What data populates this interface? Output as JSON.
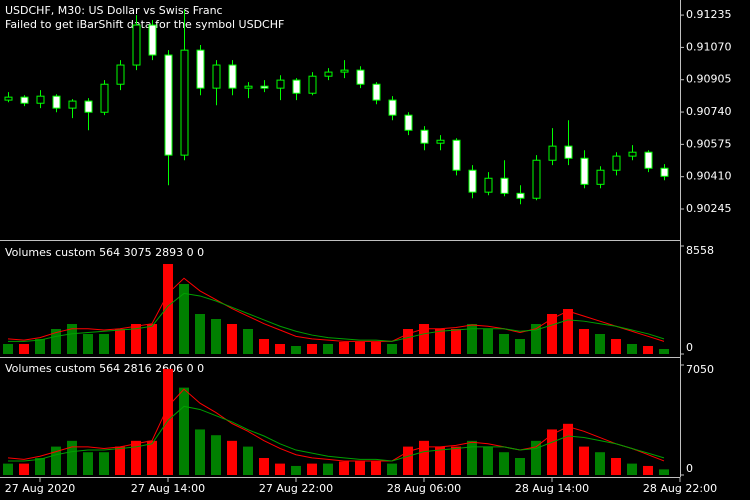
{
  "chart_data": [
    {
      "type": "candlestick",
      "title": "USDCHF, M30:  US Dollar vs Swiss Franc",
      "annotation": "Failed to get iBarShift data for the symbol USDCHF",
      "open": [
        0.90801,
        0.90816,
        0.90785,
        0.90821,
        0.9076,
        0.90796,
        0.90739,
        0.90882,
        0.9098,
        0.91184,
        0.91031,
        0.9052,
        0.91056,
        0.90862,
        0.9098,
        0.90862,
        0.90872,
        0.90862,
        0.90903,
        0.90836,
        0.90923,
        0.90944,
        0.90954,
        0.90882,
        0.90801,
        0.90724,
        0.90647,
        0.90581,
        0.90596,
        0.90443,
        0.90331,
        0.90402,
        0.90325,
        0.903,
        0.90494,
        0.90566,
        0.90504,
        0.90371,
        0.90443,
        0.90515,
        0.90535,
        0.90453
      ],
      "high": [
        0.90842,
        0.90826,
        0.90852,
        0.90831,
        0.90806,
        0.90811,
        0.90903,
        0.91005,
        0.91235,
        0.91209,
        0.91056,
        0.91261,
        0.91082,
        0.91005,
        0.91005,
        0.90893,
        0.90903,
        0.90928,
        0.90913,
        0.90944,
        0.90964,
        0.91005,
        0.90974,
        0.90893,
        0.90821,
        0.90739,
        0.90668,
        0.90622,
        0.90606,
        0.90469,
        0.90433,
        0.90494,
        0.90366,
        0.9052,
        0.90658,
        0.90698,
        0.90545,
        0.90463,
        0.90535,
        0.90571,
        0.90545,
        0.90474
      ],
      "low": [
        0.9079,
        0.9077,
        0.9076,
        0.90739,
        0.90709,
        0.90647,
        0.90724,
        0.90852,
        0.90954,
        0.91005,
        0.90366,
        0.90494,
        0.90826,
        0.90775,
        0.90826,
        0.90811,
        0.90842,
        0.90801,
        0.90801,
        0.90826,
        0.90903,
        0.90913,
        0.90862,
        0.9078,
        0.90698,
        0.90622,
        0.90545,
        0.90545,
        0.90417,
        0.903,
        0.90315,
        0.9031,
        0.90269,
        0.9029,
        0.90469,
        0.90469,
        0.90351,
        0.90351,
        0.90417,
        0.90494,
        0.90433,
        0.90392
      ],
      "close": [
        0.90816,
        0.90785,
        0.90821,
        0.9076,
        0.90796,
        0.90739,
        0.90882,
        0.9098,
        0.91184,
        0.91031,
        0.9052,
        0.91056,
        0.90862,
        0.9098,
        0.90862,
        0.90872,
        0.90862,
        0.90903,
        0.90836,
        0.90923,
        0.90944,
        0.90954,
        0.90882,
        0.90801,
        0.90724,
        0.90647,
        0.90581,
        0.90596,
        0.90443,
        0.90331,
        0.90402,
        0.90325,
        0.903,
        0.90494,
        0.90566,
        0.90504,
        0.90371,
        0.90443,
        0.90515,
        0.90535,
        0.90453,
        0.90412
      ],
      "up_color": "#000000",
      "down_color": "#ffffff",
      "wick_color": "#00ff00",
      "ylim": [
        0.90097,
        0.91312
      ],
      "yticks": [
        {
          "value": 0.91235,
          "label": "0.91235"
        },
        {
          "value": 0.9107,
          "label": "0.91070"
        },
        {
          "value": 0.90905,
          "label": "0.90905"
        },
        {
          "value": 0.9074,
          "label": "0.90740"
        },
        {
          "value": 0.90575,
          "label": "0.90575"
        },
        {
          "value": 0.9041,
          "label": "0.90410"
        },
        {
          "value": 0.90245,
          "label": "0.90245"
        }
      ],
      "xticks": [
        {
          "value": 2,
          "label": "27 Aug 2020"
        },
        {
          "value": 10,
          "label": "27 Aug 14:00"
        },
        {
          "value": 18,
          "label": "27 Aug 22:00"
        },
        {
          "value": 26,
          "label": "28 Aug 06:00"
        },
        {
          "value": 34,
          "label": "28 Aug 14:00"
        },
        {
          "value": 42,
          "label": "28 Aug 22:00"
        }
      ]
    },
    {
      "type": "bar",
      "title": "Volumes custom 564 3075 2893 0 0",
      "values": [
        792,
        792,
        1188,
        1981,
        2377,
        1585,
        1585,
        1981,
        2377,
        2377,
        7132,
        5547,
        3170,
        2773,
        2377,
        1981,
        1188,
        792,
        634,
        792,
        792,
        951,
        951,
        951,
        792,
        1981,
        2377,
        1981,
        1981,
        2377,
        1981,
        1585,
        1188,
        2377,
        3170,
        3566,
        1981,
        1585,
        1188,
        792,
        634,
        396
      ],
      "bar_colors": [
        "#008000",
        "#ff0000",
        "#008000",
        "#008000",
        "#008000",
        "#008000",
        "#008000",
        "#ff0000",
        "#ff0000",
        "#ff0000",
        "#ff0000",
        "#008000",
        "#008000",
        "#008000",
        "#ff0000",
        "#008000",
        "#ff0000",
        "#ff0000",
        "#008000",
        "#ff0000",
        "#008000",
        "#ff0000",
        "#ff0000",
        "#ff0000",
        "#008000",
        "#ff0000",
        "#ff0000",
        "#ff0000",
        "#ff0000",
        "#008000",
        "#008000",
        "#008000",
        "#008000",
        "#008000",
        "#ff0000",
        "#ff0000",
        "#ff0000",
        "#008000",
        "#ff0000",
        "#008000",
        "#ff0000",
        "#008000"
      ],
      "series": [
        {
          "color": "#ff0000",
          "values": [
            1200,
            1100,
            1300,
            1700,
            2000,
            2000,
            1900,
            2000,
            2200,
            2400,
            4800,
            6000,
            5000,
            4300,
            3600,
            3000,
            2400,
            1900,
            1400,
            1200,
            1100,
            1000,
            1000,
            1000,
            1000,
            1600,
            2000,
            2000,
            2100,
            2300,
            2200,
            2000,
            1700,
            2000,
            2800,
            3400,
            3000,
            2600,
            2200,
            1800,
            1400,
            1000
          ]
        },
        {
          "color": "#00a000",
          "values": [
            1000,
            1000,
            1100,
            1400,
            1600,
            1700,
            1800,
            1900,
            2000,
            2200,
            3800,
            4800,
            4600,
            4200,
            3700,
            3200,
            2700,
            2200,
            1800,
            1500,
            1300,
            1200,
            1100,
            1100,
            1000,
            1300,
            1600,
            1800,
            1900,
            2000,
            2000,
            2000,
            1800,
            1900,
            2300,
            2700,
            2600,
            2400,
            2200,
            1900,
            1600,
            1200
          ]
        }
      ],
      "ylim": [
        0,
        8558
      ],
      "yticks": [
        0,
        8558
      ]
    },
    {
      "type": "bar",
      "title": "Volumes custom 564 2816 2606 0 0",
      "values": [
        730,
        730,
        1090,
        1820,
        2190,
        1460,
        1460,
        1820,
        2190,
        2190,
        6800,
        5600,
        2920,
        2550,
        2190,
        1820,
        1090,
        730,
        580,
        730,
        730,
        870,
        870,
        870,
        730,
        1820,
        2190,
        1820,
        1820,
        2190,
        1820,
        1460,
        1090,
        2190,
        2920,
        3280,
        1820,
        1460,
        1090,
        730,
        580,
        360
      ],
      "bar_colors": [
        "#008000",
        "#ff0000",
        "#008000",
        "#008000",
        "#008000",
        "#008000",
        "#008000",
        "#ff0000",
        "#ff0000",
        "#ff0000",
        "#ff0000",
        "#008000",
        "#008000",
        "#008000",
        "#ff0000",
        "#008000",
        "#ff0000",
        "#ff0000",
        "#008000",
        "#ff0000",
        "#008000",
        "#ff0000",
        "#ff0000",
        "#ff0000",
        "#008000",
        "#ff0000",
        "#ff0000",
        "#ff0000",
        "#ff0000",
        "#008000",
        "#008000",
        "#008000",
        "#008000",
        "#008000",
        "#ff0000",
        "#ff0000",
        "#ff0000",
        "#008000",
        "#ff0000",
        "#008000",
        "#ff0000",
        "#008000"
      ],
      "series": [
        {
          "color": "#ff0000",
          "values": [
            1100,
            1000,
            1200,
            1500,
            1800,
            1800,
            1700,
            1800,
            2000,
            2200,
            4400,
            5500,
            4600,
            4000,
            3300,
            2800,
            2200,
            1700,
            1300,
            1100,
            1000,
            900,
            900,
            900,
            900,
            1500,
            1800,
            1800,
            1900,
            2100,
            2000,
            1800,
            1600,
            1800,
            2600,
            3100,
            2800,
            2400,
            2000,
            1700,
            1300,
            900
          ]
        },
        {
          "color": "#00a000",
          "values": [
            900,
            900,
            1000,
            1300,
            1500,
            1600,
            1600,
            1700,
            1800,
            2000,
            3500,
            4400,
            4200,
            3800,
            3400,
            2900,
            2500,
            2000,
            1600,
            1400,
            1200,
            1100,
            1000,
            1000,
            900,
            1200,
            1500,
            1600,
            1700,
            1800,
            1800,
            1800,
            1600,
            1700,
            2100,
            2500,
            2400,
            2200,
            2000,
            1700,
            1400,
            1100
          ]
        }
      ],
      "ylim": [
        0,
        7050
      ],
      "yticks": [
        0,
        7050
      ]
    }
  ]
}
